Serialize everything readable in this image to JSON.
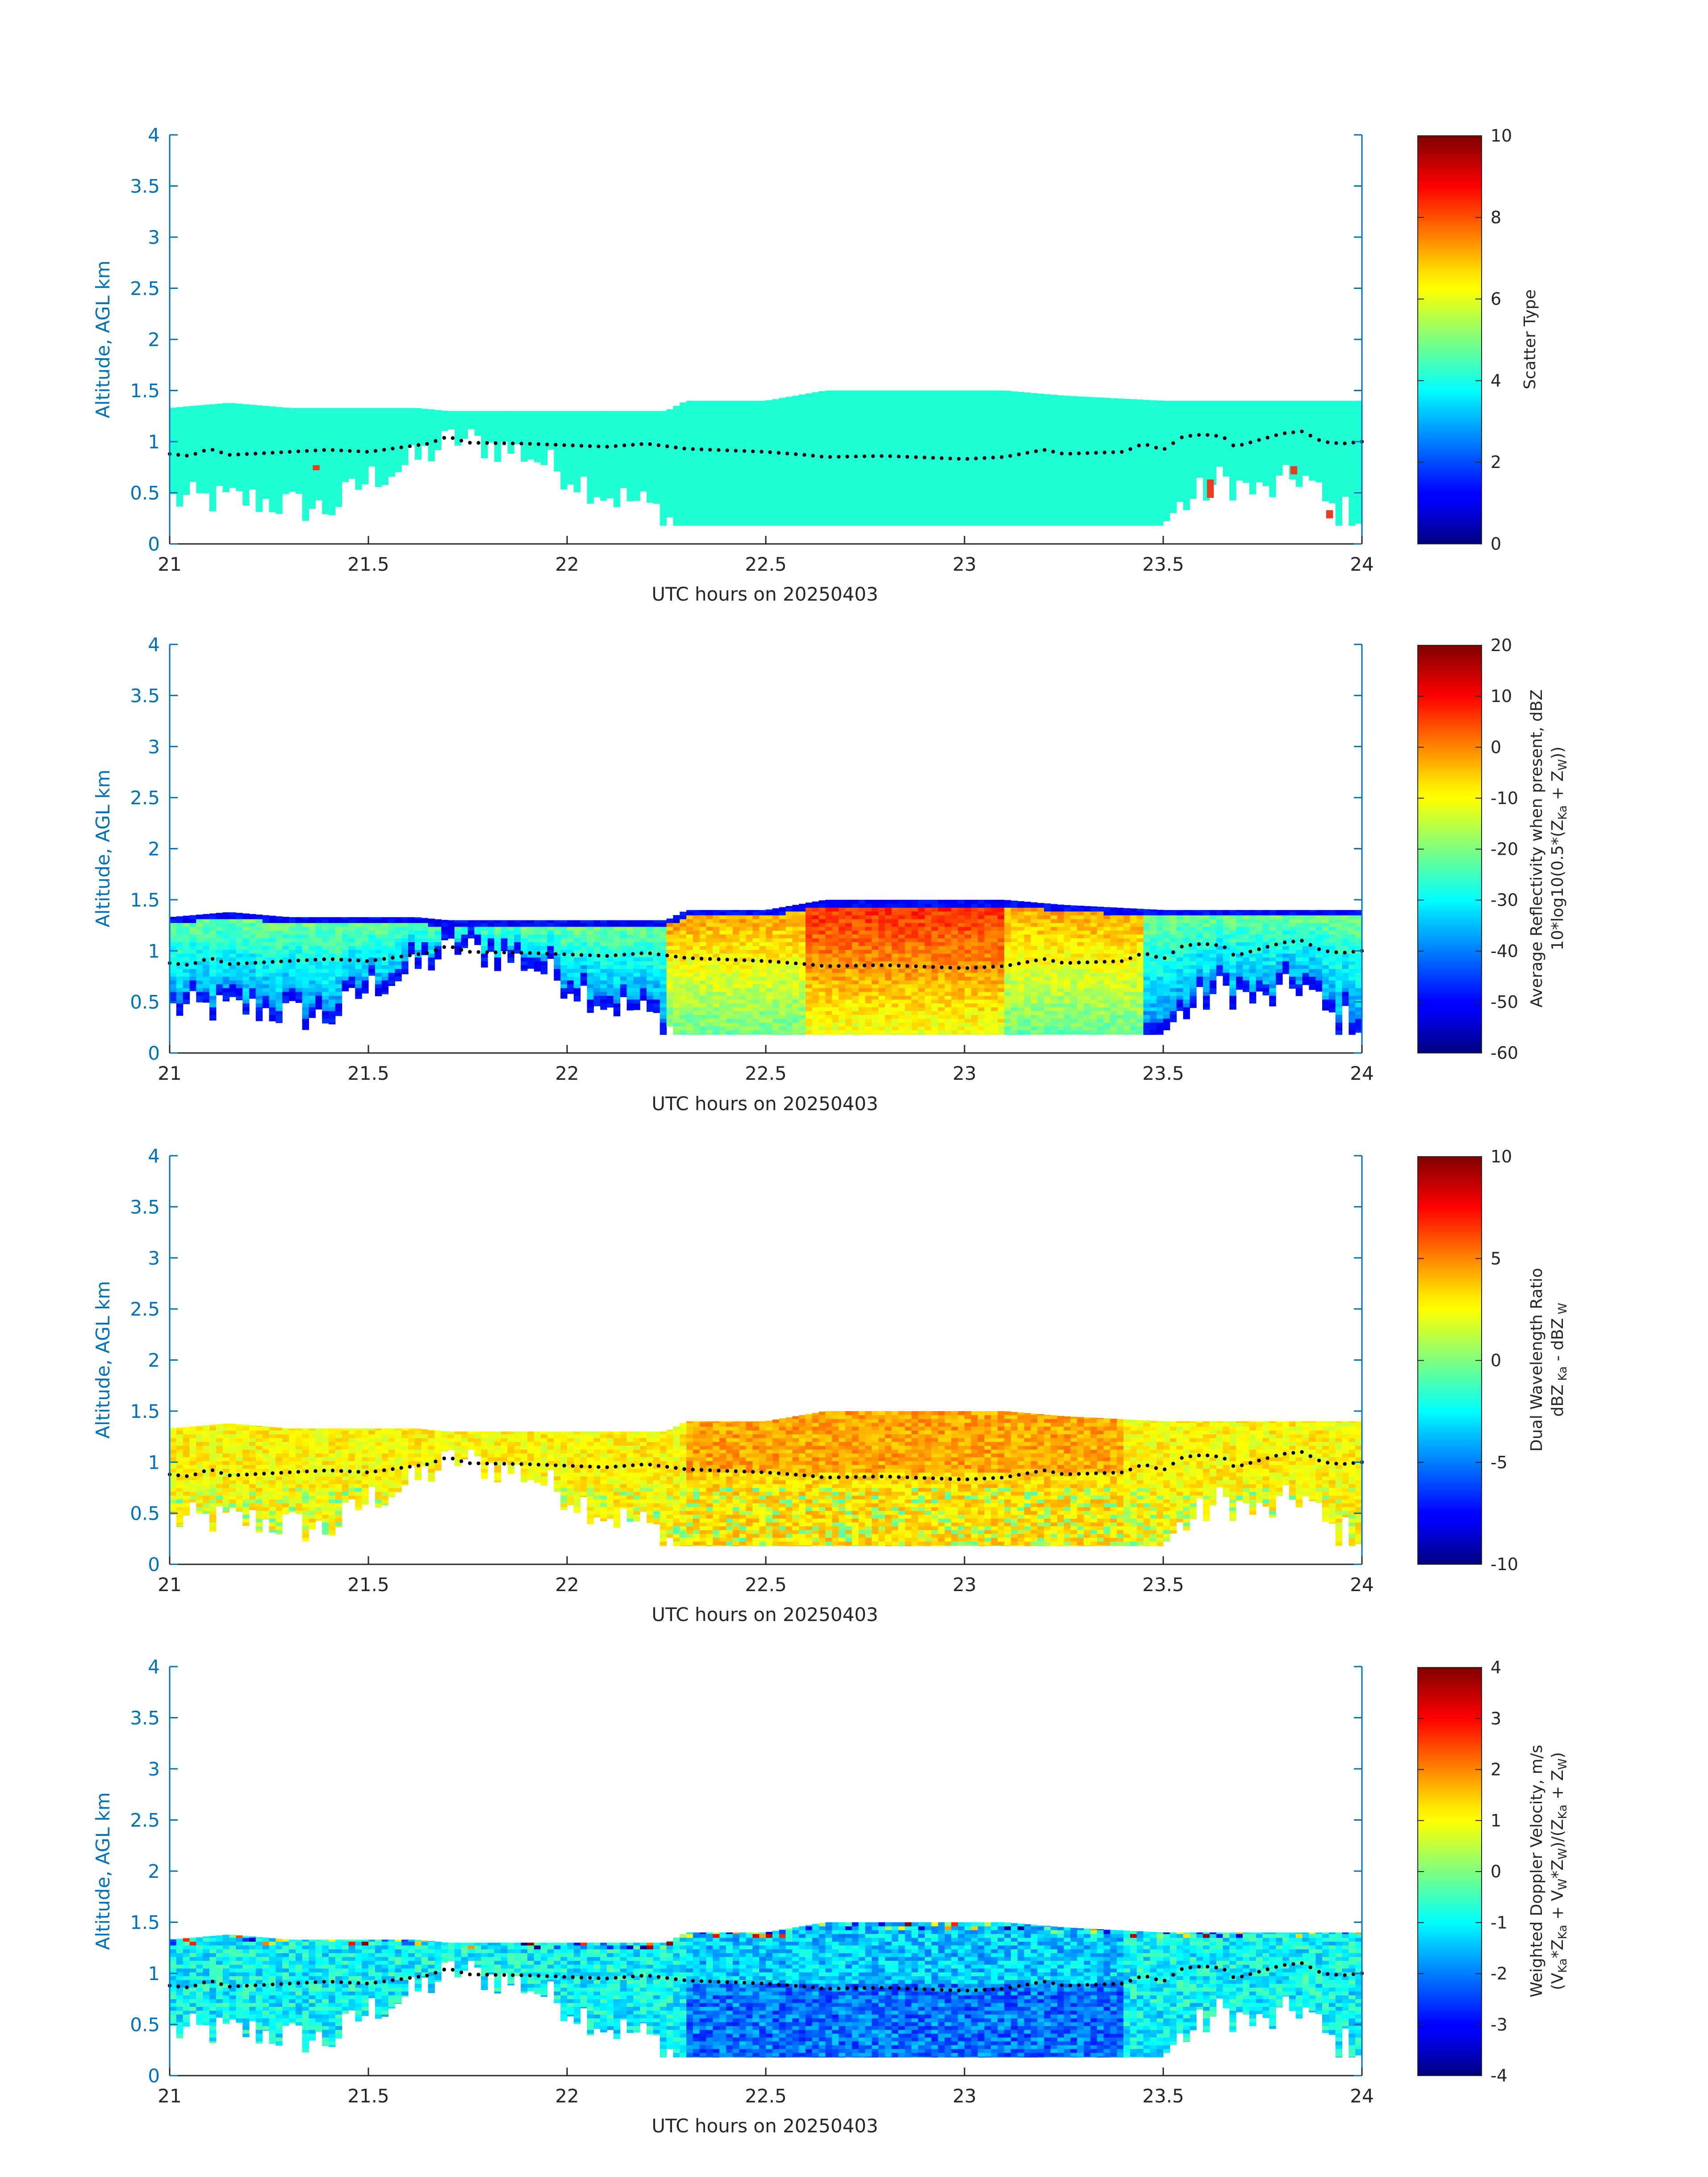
{
  "figure": {
    "colors": {
      "axis": "#0072BD",
      "text": "#262626",
      "fill_primary": "#1FFFD4",
      "anomaly": "#E63E20",
      "melt_dots": "#000000"
    }
  },
  "chart_data": [
    {
      "type": "heatmap",
      "title": "",
      "xlabel": "UTC hours on 20250403",
      "ylabel": "Altitude, AGL km",
      "xlim": [
        21,
        24
      ],
      "ylim": [
        0,
        4
      ],
      "xticks": [
        "21",
        "21.5",
        "22",
        "22.5",
        "23",
        "23.5",
        "24"
      ],
      "yticks": [
        "0",
        "0.5",
        "1",
        "1.5",
        "2",
        "2.5",
        "3",
        "3.5",
        "4"
      ],
      "colorbar": {
        "label": "Scatter Type",
        "label2": "",
        "clim": [
          0,
          10
        ],
        "ticks": [
          "0",
          "2",
          "4",
          "6",
          "8",
          "10"
        ],
        "colormap": "jet"
      },
      "field": "scatter_type",
      "typical_value": 3.8
    },
    {
      "type": "heatmap",
      "title": "",
      "xlabel": "UTC hours on 20250403",
      "ylabel": "Altitude, AGL km",
      "xlim": [
        21,
        24
      ],
      "ylim": [
        0,
        4
      ],
      "xticks": [
        "21",
        "21.5",
        "22",
        "22.5",
        "23",
        "23.5",
        "24"
      ],
      "yticks": [
        "0",
        "0.5",
        "1",
        "1.5",
        "2",
        "2.5",
        "3",
        "3.5",
        "4"
      ],
      "colorbar": {
        "label": "Average Reflectivity when present, dBZ",
        "label2": "10*log10(0.5*(Z_Ka + Z_W))",
        "clim": [
          -60,
          20
        ],
        "ticks": [
          "-60",
          "-50",
          "-40",
          "-30",
          "-20",
          "-10",
          "0",
          "10",
          "20"
        ],
        "colormap": "jet"
      },
      "field": "reflectivity",
      "typical_range": [
        -60,
        0
      ]
    },
    {
      "type": "heatmap",
      "title": "",
      "xlabel": "UTC hours on 20250403",
      "ylabel": "Altitude, AGL km",
      "xlim": [
        21,
        24
      ],
      "ylim": [
        0,
        4
      ],
      "xticks": [
        "21",
        "21.5",
        "22",
        "22.5",
        "23",
        "23.5",
        "24"
      ],
      "yticks": [
        "0",
        "0.5",
        "1",
        "1.5",
        "2",
        "2.5",
        "3",
        "3.5",
        "4"
      ],
      "colorbar": {
        "label": "Dual Wavelength Ratio",
        "label2": "dBZ Ka - dBZ W",
        "clim": [
          -10,
          10
        ],
        "ticks": [
          "-10",
          "-5",
          "0",
          "5",
          "10"
        ],
        "colormap": "jet"
      },
      "field": "dwr",
      "typical_range": [
        0,
        5
      ]
    },
    {
      "type": "heatmap",
      "title": "",
      "xlabel": "UTC hours on 20250403",
      "ylabel": "Altitude, AGL km",
      "xlim": [
        21,
        24
      ],
      "ylim": [
        0,
        4
      ],
      "xticks": [
        "21",
        "21.5",
        "22",
        "22.5",
        "23",
        "23.5",
        "24"
      ],
      "yticks": [
        "0",
        "0.5",
        "1",
        "1.5",
        "2",
        "2.5",
        "3",
        "3.5",
        "4"
      ],
      "colorbar": {
        "label": "Weighted Doppler Velocity, m/s",
        "label2": "(V_Ka*Z_Ka + V_W*Z_W)/(Z_Ka + Z_W)",
        "clim": [
          -4,
          4
        ],
        "ticks": [
          "-4",
          "-3",
          "-2",
          "-1",
          "0",
          "1",
          "2",
          "3",
          "4"
        ],
        "colormap": "jet"
      },
      "field": "velocity",
      "typical_range": [
        -2,
        0
      ]
    }
  ],
  "cloud_profile": {
    "cloud_top_km": [
      [
        21.0,
        1.33
      ],
      [
        21.15,
        1.38
      ],
      [
        21.3,
        1.33
      ],
      [
        21.62,
        1.33
      ],
      [
        21.7,
        1.3
      ],
      [
        22.0,
        1.3
      ],
      [
        22.25,
        1.3
      ],
      [
        22.3,
        1.4
      ],
      [
        22.5,
        1.4
      ],
      [
        22.65,
        1.5
      ],
      [
        23.1,
        1.5
      ],
      [
        23.25,
        1.45
      ],
      [
        23.5,
        1.4
      ],
      [
        24.0,
        1.4
      ]
    ],
    "cloud_base_km": [
      [
        21.0,
        0.4
      ],
      [
        21.2,
        0.4
      ],
      [
        21.4,
        0.3
      ],
      [
        21.5,
        0.6
      ],
      [
        21.6,
        0.75
      ],
      [
        21.72,
        1.0
      ],
      [
        21.9,
        0.85
      ],
      [
        22.0,
        0.65
      ],
      [
        22.1,
        0.45
      ],
      [
        22.2,
        0.35
      ],
      [
        22.27,
        0.18
      ],
      [
        23.5,
        0.18
      ],
      [
        23.55,
        0.35
      ],
      [
        23.65,
        0.6
      ],
      [
        23.75,
        0.45
      ],
      [
        23.85,
        0.65
      ],
      [
        23.92,
        0.3
      ],
      [
        24.0,
        0.25
      ]
    ],
    "melt_layer_km": [
      [
        21.0,
        0.88
      ],
      [
        21.05,
        0.86
      ],
      [
        21.1,
        0.93
      ],
      [
        21.15,
        0.87
      ],
      [
        21.2,
        0.88
      ],
      [
        21.4,
        0.92
      ],
      [
        21.5,
        0.9
      ],
      [
        21.65,
        0.98
      ],
      [
        21.7,
        1.05
      ],
      [
        21.75,
        0.99
      ],
      [
        21.9,
        0.98
      ],
      [
        22.1,
        0.95
      ],
      [
        22.2,
        0.98
      ],
      [
        22.3,
        0.93
      ],
      [
        22.5,
        0.9
      ],
      [
        22.6,
        0.87
      ],
      [
        22.65,
        0.85
      ],
      [
        22.8,
        0.86
      ],
      [
        23.0,
        0.83
      ],
      [
        23.1,
        0.85
      ],
      [
        23.2,
        0.92
      ],
      [
        23.25,
        0.88
      ],
      [
        23.4,
        0.9
      ],
      [
        23.45,
        0.98
      ],
      [
        23.5,
        0.92
      ],
      [
        23.55,
        1.05
      ],
      [
        23.6,
        1.07
      ],
      [
        23.65,
        1.05
      ],
      [
        23.68,
        0.95
      ],
      [
        23.8,
        1.08
      ],
      [
        23.85,
        1.1
      ],
      [
        23.9,
        1.0
      ],
      [
        23.95,
        0.98
      ],
      [
        24.0,
        1.0
      ]
    ]
  }
}
